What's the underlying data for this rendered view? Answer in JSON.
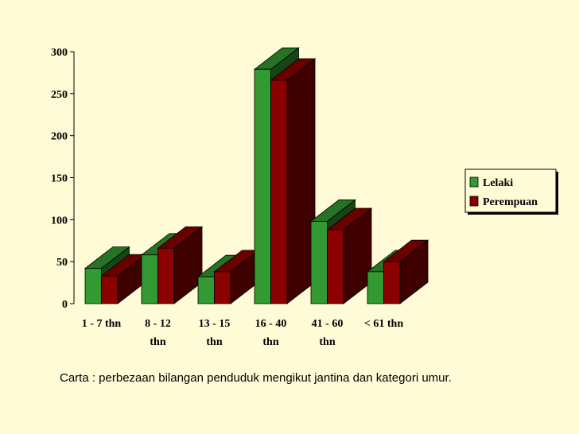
{
  "chart_data": {
    "type": "bar3d",
    "categories": [
      [
        "1 - 7 thn"
      ],
      [
        "8 - 12",
        "thn"
      ],
      [
        "13 - 15",
        "thn"
      ],
      [
        "16 - 40",
        "thn"
      ],
      [
        "41 - 60",
        "thn"
      ],
      [
        "< 61 thn"
      ]
    ],
    "series": [
      {
        "name": "Lelaki",
        "color": "#339933",
        "values": [
          42,
          58,
          32,
          279,
          98,
          38
        ]
      },
      {
        "name": "Perempuan",
        "color": "#8b0000",
        "values": [
          33,
          66,
          38,
          266,
          88,
          50
        ]
      }
    ],
    "ylim": [
      0,
      300
    ],
    "yticks": [
      0,
      50,
      100,
      150,
      200,
      250,
      300
    ],
    "legend": "right",
    "caption": "Carta : perbezaan bilangan penduduk mengikut jantina dan kategori umur."
  }
}
